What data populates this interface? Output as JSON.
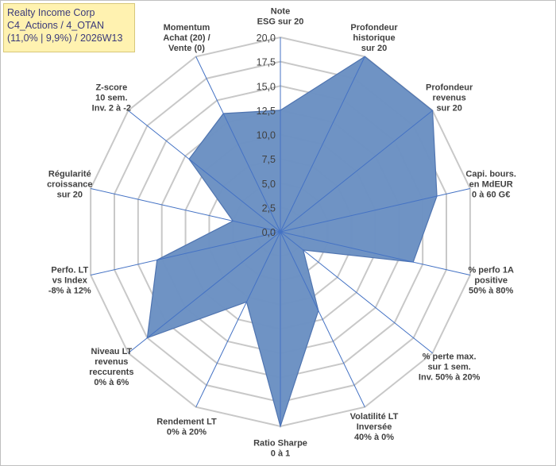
{
  "title_box": {
    "lines": [
      "Realty Income Corp",
      "C4_Actions / 4_OTAN",
      "(11,0% | 9,9%) / 2026W13"
    ],
    "background": "#fff2b0",
    "text_color": "#3a3a7a"
  },
  "chart_data": {
    "type": "radar",
    "title": "Realty Income Corp",
    "rlim": [
      0,
      20
    ],
    "r_ticks": [
      "0,0",
      "2,5",
      "5,0",
      "7,5",
      "10,0",
      "12,5",
      "15,0",
      "17,5",
      "20,0"
    ],
    "grid": true,
    "axes": [
      {
        "label": [
          "Note",
          "ESG sur 20"
        ],
        "value": 12.5
      },
      {
        "label": [
          "Profondeur",
          "historique",
          "sur 20"
        ],
        "value": 20.0
      },
      {
        "label": [
          "Profondeur",
          "revenus",
          "sur 20"
        ],
        "value": 20.0
      },
      {
        "label": [
          "Capi. bours.",
          "en MdEUR",
          "0 à 60 G€"
        ],
        "value": 16.5
      },
      {
        "label": [
          "% perfo 1A",
          "positive",
          "50% à 80%"
        ],
        "value": 14.0
      },
      {
        "label": [
          "% perte max.",
          "sur 1 sem.",
          "Inv. 50% à 20%"
        ],
        "value": 3.0
      },
      {
        "label": [
          "Volatilité LT",
          "Inversée",
          "40% à 0%"
        ],
        "value": 9.0
      },
      {
        "label": [
          "Ratio Sharpe",
          "0 à 1"
        ],
        "value": 20.0
      },
      {
        "label": [
          "Rendement LT",
          "0% à 20%"
        ],
        "value": 8.0
      },
      {
        "label": [
          "Niveau LT",
          "revenus",
          "reccurents",
          "0% à 6%"
        ],
        "value": 17.5
      },
      {
        "label": [
          "Perfo. LT",
          "vs Index",
          "-8% à 12%"
        ],
        "value": 13.0
      },
      {
        "label": [
          "Régularité",
          "croissance",
          "sur 20"
        ],
        "value": 5.0
      },
      {
        "label": [
          "Z-score",
          "10 sem.",
          "Inv. 2 à -2"
        ],
        "value": 12.0
      },
      {
        "label": [
          "Momentum",
          "Achat (20) /",
          "Vente (0)"
        ],
        "value": 13.5
      }
    ],
    "series": [
      {
        "name": "Realty Income Corp",
        "fill": "#6a8fc2",
        "stroke": "#4f74b0"
      }
    ],
    "grid_color": "#c8c8c8",
    "spoke_color": "#4472c4"
  }
}
